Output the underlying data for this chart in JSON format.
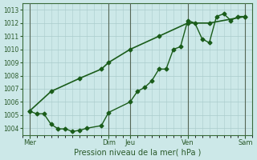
{
  "xlabel": "Pression niveau de la mer( hPa )",
  "bg_color": "#cce8e8",
  "grid_color": "#aacccc",
  "line_color": "#1a5c1a",
  "vline_color": "#556655",
  "ylim": [
    1003.5,
    1013.5
  ],
  "yticks": [
    1004,
    1005,
    1006,
    1007,
    1008,
    1009,
    1010,
    1011,
    1012,
    1013
  ],
  "xlim": [
    0,
    16
  ],
  "xtick_labels": [
    "Mer",
    "Dim",
    "Jeu",
    "Ven",
    "Sam"
  ],
  "xtick_positions": [
    0.5,
    6.0,
    7.5,
    11.5,
    15.5
  ],
  "vline_positions": [
    0.5,
    6.0,
    7.5,
    11.5,
    15.5
  ],
  "line1_x": [
    0.5,
    1.0,
    1.5,
    2.0,
    2.5,
    3.0,
    3.5,
    4.0,
    4.5,
    5.5,
    6.0,
    7.5,
    8.0,
    8.5,
    9.0,
    9.5,
    10.0,
    10.5,
    11.0,
    11.5,
    12.0,
    12.5,
    13.0,
    13.5,
    14.0,
    14.5,
    15.0,
    15.5
  ],
  "line1_y": [
    1005.3,
    1005.1,
    1005.1,
    1004.3,
    1003.95,
    1003.95,
    1003.75,
    1003.85,
    1004.0,
    1004.2,
    1005.2,
    1006.0,
    1006.8,
    1007.1,
    1007.6,
    1008.5,
    1008.5,
    1010.0,
    1010.2,
    1012.2,
    1012.0,
    1010.8,
    1010.5,
    1012.5,
    1012.7,
    1012.2,
    1012.5,
    1012.5
  ],
  "line2_x": [
    0.5,
    2.0,
    4.0,
    5.5,
    6.0,
    7.5,
    9.5,
    11.5,
    13.0,
    15.5
  ],
  "line2_y": [
    1005.3,
    1006.8,
    1007.8,
    1008.5,
    1009.0,
    1010.0,
    1011.0,
    1012.0,
    1012.0,
    1012.5
  ],
  "marker": "D",
  "marker_size": 2.5,
  "linewidth": 1.0,
  "linewidth2": 1.2
}
